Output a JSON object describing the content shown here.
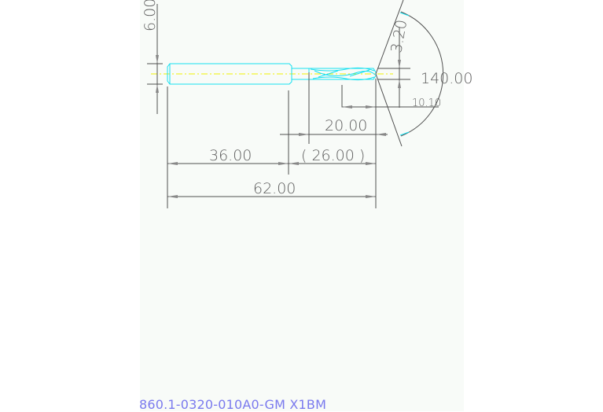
{
  "drawing": {
    "dimensions": {
      "shank_diameter": "6.00",
      "drill_diameter": "3.20",
      "point_angle": "140.00",
      "tip_length": "10.10",
      "flute_length": "20.00",
      "neck_to_tip": "( 26.00 )",
      "shank_length": "36.00",
      "overall_length": "62.00"
    },
    "colors": {
      "tool_outline": "#18e0f0",
      "centerline": "#f0f000",
      "dimension": "#505050",
      "part_code": "#7a7aee"
    }
  },
  "part_code": "860.1-0320-010A0-GM X1BM"
}
